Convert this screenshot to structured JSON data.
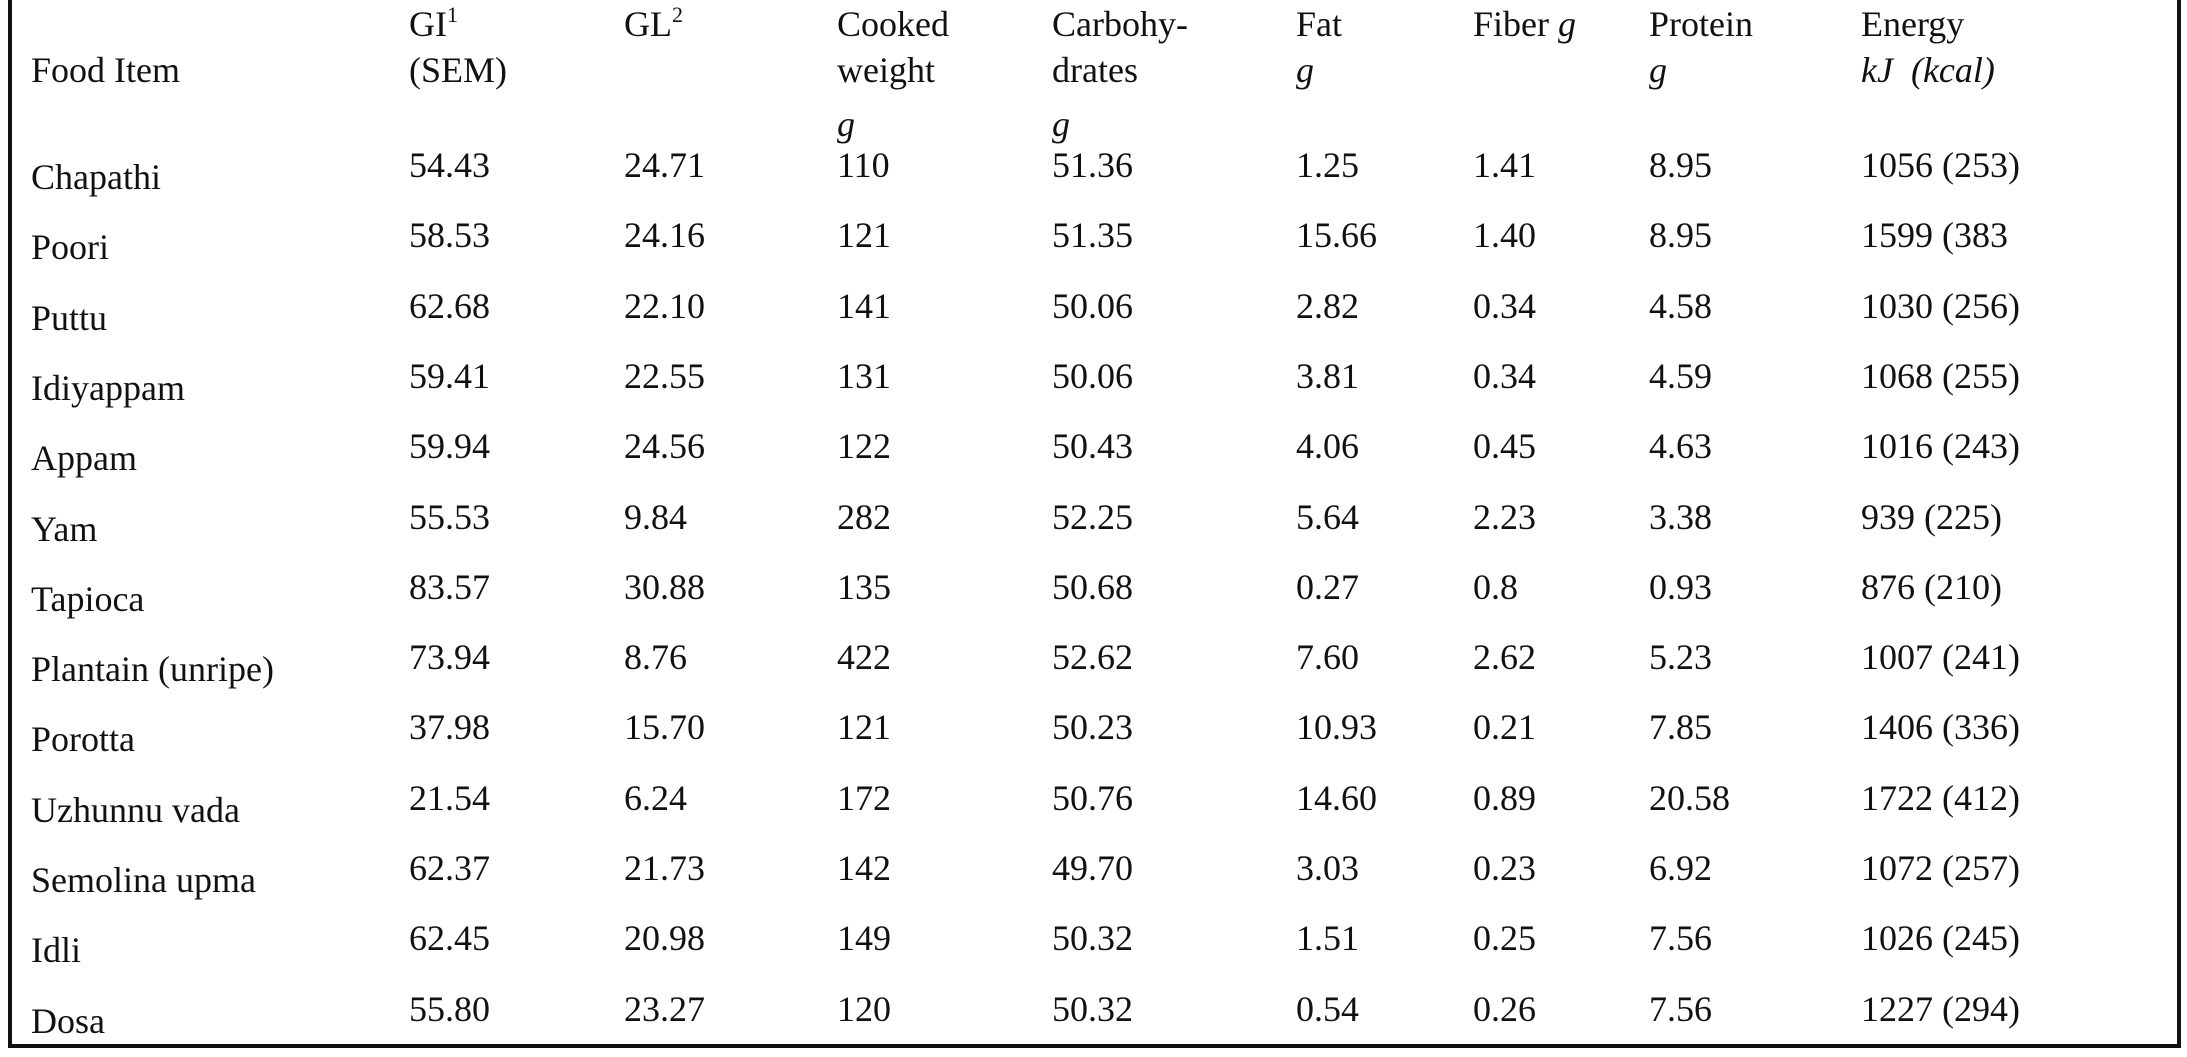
{
  "table": {
    "header": [
      {
        "lines": [
          "Food Item"
        ]
      },
      {
        "lines": [
          "GI",
          "(SEM)"
        ],
        "sup": "1"
      },
      {
        "lines": [
          "GL"
        ],
        "sup": "2"
      },
      {
        "lines": [
          "Cooked",
          "weight"
        ],
        "unit": "g"
      },
      {
        "lines": [
          "Carbohy-",
          "drates"
        ],
        "unit": "g"
      },
      {
        "lines": [
          "Fat"
        ],
        "unit": "g"
      },
      {
        "lines": [
          "Fiber"
        ],
        "unit": "g",
        "unit_inline": true
      },
      {
        "lines": [
          "Protein"
        ],
        "unit": "g"
      },
      {
        "lines": [
          "Energy"
        ],
        "unit": "kJ  (kcal)"
      }
    ],
    "rows": [
      [
        "Chapathi",
        "54.43",
        "24.71",
        "110",
        "51.36",
        "1.25",
        "1.41",
        "8.95",
        "1056 (253)"
      ],
      [
        "Poori",
        "58.53",
        "24.16",
        "121",
        "51.35",
        "15.66",
        "1.40",
        "8.95",
        "1599 (383"
      ],
      [
        "Puttu",
        "62.68",
        "22.10",
        "141",
        "50.06",
        "2.82",
        "0.34",
        "4.58",
        "1030 (256)"
      ],
      [
        "Idiyappam",
        "59.41",
        "22.55",
        "131",
        "50.06",
        "3.81",
        "0.34",
        "4.59",
        "1068 (255)"
      ],
      [
        "Appam",
        "59.94",
        "24.56",
        "122",
        "50.43",
        "4.06",
        "0.45",
        "4.63",
        "1016 (243)"
      ],
      [
        "Yam",
        "55.53",
        "9.84",
        "282",
        "52.25",
        "5.64",
        "2.23",
        "3.38",
        "939 (225)"
      ],
      [
        "Tapioca",
        "83.57",
        "30.88",
        "135",
        "50.68",
        "0.27",
        "0.8",
        "0.93",
        "876 (210)"
      ],
      [
        "Plantain (unripe)",
        "73.94",
        "8.76",
        "422",
        "52.62",
        "7.60",
        "2.62",
        "5.23",
        "1007 (241)"
      ],
      [
        "Porotta",
        "37.98",
        "15.70",
        "121",
        "50.23",
        "10.93",
        "0.21",
        "7.85",
        "1406 (336)"
      ],
      [
        "Uzhunnu vada",
        "21.54",
        "6.24",
        "172",
        "50.76",
        "14.60",
        "0.89",
        "20.58",
        "1722 (412)"
      ],
      [
        "Semolina upma",
        "62.37",
        "21.73",
        "142",
        "49.70",
        "3.03",
        "0.23",
        "6.92",
        "1072 (257)"
      ],
      [
        "Idli",
        "62.45",
        "20.98",
        "149",
        "50.32",
        "1.51",
        "0.25",
        "7.56",
        "1026 (245)"
      ],
      [
        "Dosa",
        "55.80",
        "23.27",
        "120",
        "50.32",
        "0.54",
        "0.26",
        "7.56",
        "1227 (294)"
      ]
    ]
  }
}
